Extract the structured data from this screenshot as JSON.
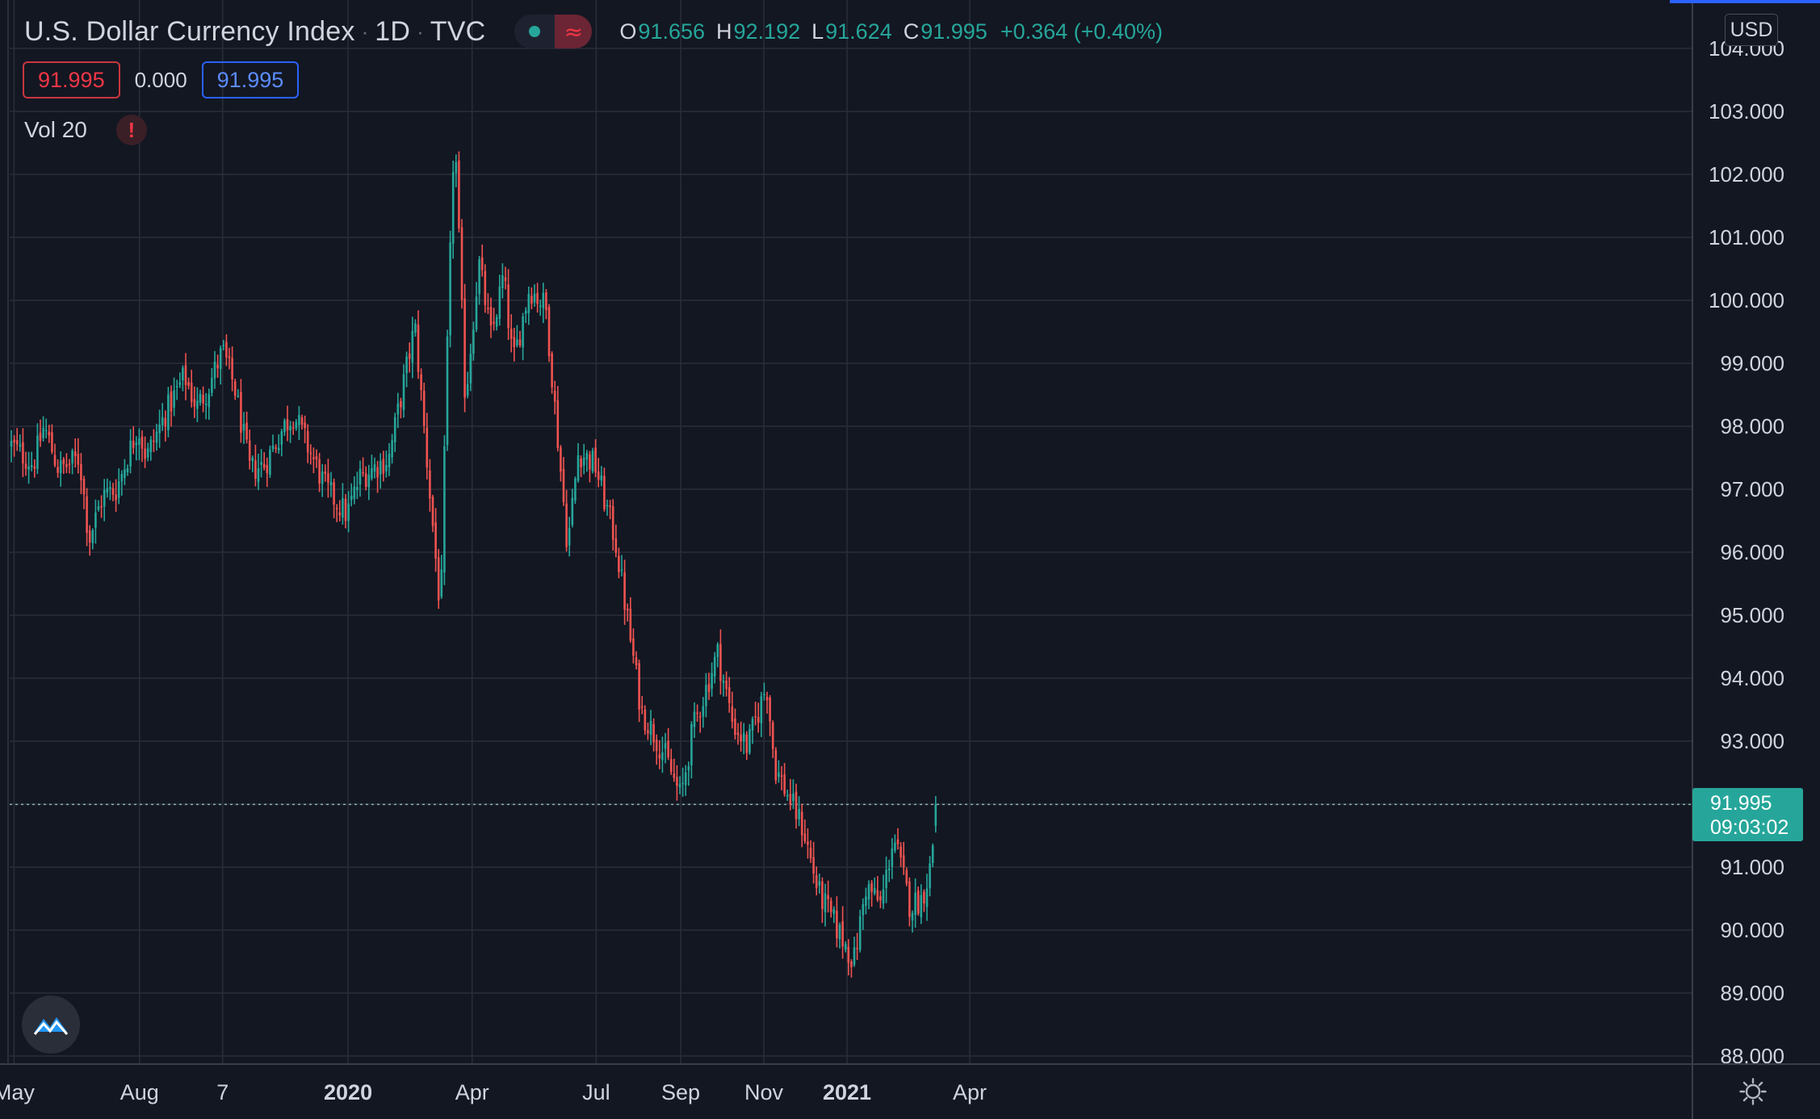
{
  "header": {
    "symbol_name": "U.S. Dollar Currency Index",
    "interval": "1D",
    "exchange": "TVC",
    "separator": "·",
    "status_icon": "market-status-dot",
    "delay_icon": "≈",
    "ohlc": {
      "o_label": "O",
      "o_value": "91.656",
      "h_label": "H",
      "h_value": "92.192",
      "l_label": "L",
      "l_value": "91.624",
      "c_label": "C",
      "c_value": "91.995",
      "change": "+0.364 (+0.40%)"
    }
  },
  "badges": {
    "bid": "91.995",
    "spread": "0.000",
    "ask": "91.995"
  },
  "volume": {
    "label": "Vol 20",
    "warning_icon": "!"
  },
  "price_axis": {
    "currency": "USD",
    "last_price": "91.995",
    "countdown": "09:03:02"
  },
  "colors": {
    "background": "#131722",
    "grid": "#2a2e39",
    "up": "#26a69a",
    "down": "#ef5350",
    "text": "#d1d4dc"
  },
  "chart_data": {
    "type": "candlestick",
    "title": "U.S. Dollar Currency Index",
    "interval": "1D",
    "x_ticks": [
      "May",
      "Aug",
      "7",
      "2020",
      "Apr",
      "Jul",
      "Sep",
      "Nov",
      "2021",
      "Apr"
    ],
    "y_ticks": [
      "88.000",
      "89.000",
      "90.000",
      "91.000",
      "92.000",
      "93.000",
      "94.000",
      "95.000",
      "96.000",
      "97.000",
      "98.000",
      "99.000",
      "100.000",
      "101.000",
      "102.000",
      "103.000",
      "104.000"
    ],
    "ylim": [
      88,
      104
    ],
    "grid": true,
    "last_close": 91.995,
    "path_points": [
      [
        "2019-04-29",
        97.7
      ],
      [
        "2019-05-15",
        97.4
      ],
      [
        "2019-05-23",
        98.0
      ],
      [
        "2019-06-03",
        97.3
      ],
      [
        "2019-06-18",
        97.5
      ],
      [
        "2019-06-25",
        96.2
      ],
      [
        "2019-07-05",
        96.9
      ],
      [
        "2019-07-15",
        97.0
      ],
      [
        "2019-07-31",
        98.0
      ],
      [
        "2019-08-06",
        97.5
      ],
      [
        "2019-08-20",
        98.2
      ],
      [
        "2019-09-03",
        98.8
      ],
      [
        "2019-09-12",
        98.3
      ],
      [
        "2019-09-20",
        98.6
      ],
      [
        "2019-10-01",
        99.2
      ],
      [
        "2019-10-10",
        98.6
      ],
      [
        "2019-10-21",
        97.3
      ],
      [
        "2019-11-01",
        97.4
      ],
      [
        "2019-11-15",
        98.0
      ],
      [
        "2019-11-22",
        98.2
      ],
      [
        "2019-12-04",
        97.6
      ],
      [
        "2019-12-16",
        97.0
      ],
      [
        "2019-12-31",
        96.6
      ],
      [
        "2020-01-10",
        97.2
      ],
      [
        "2020-01-31",
        97.5
      ],
      [
        "2020-02-19",
        99.6
      ],
      [
        "2020-03-09",
        95.0
      ],
      [
        "2020-03-13",
        98.7
      ],
      [
        "2020-03-19",
        102.8
      ],
      [
        "2020-03-27",
        98.4
      ],
      [
        "2020-04-06",
        100.6
      ],
      [
        "2020-04-15",
        99.4
      ],
      [
        "2020-04-24",
        100.4
      ],
      [
        "2020-05-01",
        99.0
      ],
      [
        "2020-05-13",
        100.2
      ],
      [
        "2020-05-25",
        99.9
      ],
      [
        "2020-06-10",
        96.1
      ],
      [
        "2020-06-18",
        97.6
      ],
      [
        "2020-06-30",
        97.4
      ],
      [
        "2020-07-15",
        96.2
      ],
      [
        "2020-08-03",
        93.5
      ],
      [
        "2020-08-20",
        92.8
      ],
      [
        "2020-09-01",
        92.1
      ],
      [
        "2020-09-10",
        93.2
      ],
      [
        "2020-09-28",
        94.4
      ],
      [
        "2020-10-09",
        93.3
      ],
      [
        "2020-10-20",
        92.9
      ],
      [
        "2020-11-03",
        93.9
      ],
      [
        "2020-11-09",
        92.6
      ],
      [
        "2020-11-30",
        91.6
      ],
      [
        "2020-12-11",
        90.6
      ],
      [
        "2020-12-30",
        89.8
      ],
      [
        "2021-01-06",
        89.5
      ],
      [
        "2021-01-15",
        90.7
      ],
      [
        "2021-01-26",
        90.4
      ],
      [
        "2021-02-04",
        91.5
      ],
      [
        "2021-02-16",
        90.4
      ],
      [
        "2021-02-25",
        90.5
      ],
      [
        "2021-03-03",
        91.0
      ],
      [
        "2021-03-08",
        91.995
      ]
    ]
  }
}
